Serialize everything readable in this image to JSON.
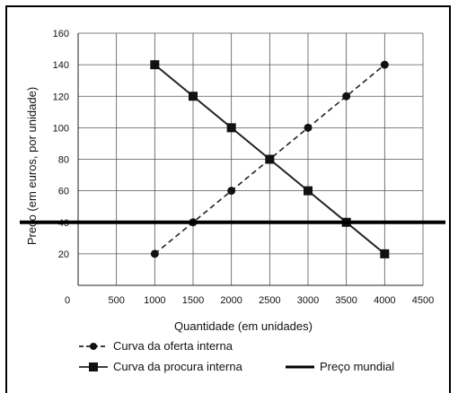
{
  "chart_data": {
    "type": "line",
    "xlabel": "Quantidade (em unidades)",
    "ylabel": "Preço (em euros, por unidade)",
    "xlim": [
      0,
      4500
    ],
    "ylim": [
      0,
      160
    ],
    "x_ticks": [
      0,
      500,
      1000,
      1500,
      2000,
      2500,
      3000,
      3500,
      4000,
      4500
    ],
    "y_ticks": [
      20,
      40,
      60,
      80,
      100,
      120,
      140,
      160
    ],
    "grid": true,
    "legend_position": "bottom",
    "series": [
      {
        "name": "Curva da oferta interna",
        "style": "dashed",
        "marker": "circle",
        "color": "#222222",
        "x": [
          1000,
          1500,
          2000,
          2500,
          3000,
          3500,
          4000
        ],
        "y": [
          20,
          40,
          60,
          80,
          100,
          120,
          140
        ]
      },
      {
        "name": "Curva da procura interna",
        "style": "solid",
        "marker": "square",
        "color": "#222222",
        "x": [
          1000,
          1500,
          2000,
          2500,
          3000,
          3500,
          4000
        ],
        "y": [
          140,
          120,
          100,
          80,
          60,
          40,
          20
        ]
      },
      {
        "name": "Preço mundial",
        "style": "solid-thick",
        "marker": "none",
        "color": "#000000",
        "y_constant": 40
      }
    ]
  }
}
